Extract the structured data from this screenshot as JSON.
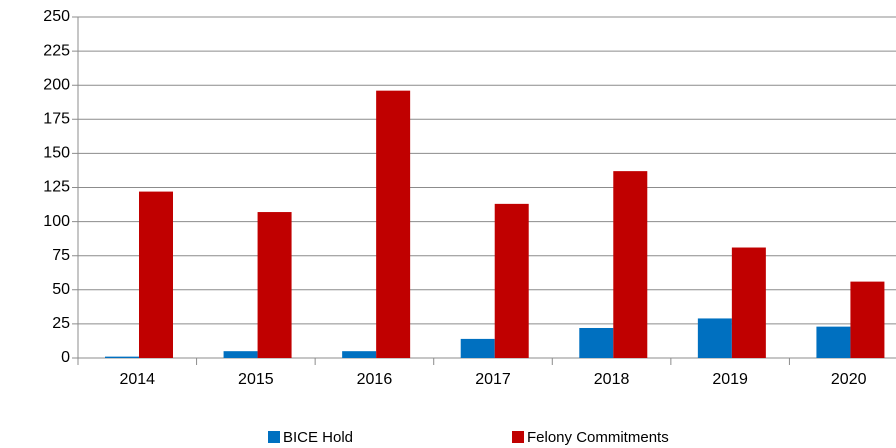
{
  "chart_data": {
    "type": "bar",
    "categories": [
      "2014",
      "2015",
      "2016",
      "2017",
      "2018",
      "2019",
      "2020"
    ],
    "series": [
      {
        "name": "BICE Hold",
        "color": "#0070c0",
        "values": [
          1,
          5,
          5,
          14,
          22,
          29,
          23
        ]
      },
      {
        "name": "Felony Commitments",
        "color": "#c00000",
        "values": [
          122,
          107,
          196,
          113,
          137,
          81,
          56
        ]
      }
    ],
    "ylim": [
      0,
      250
    ],
    "yticks": [
      0,
      25,
      50,
      75,
      100,
      125,
      150,
      175,
      200,
      225,
      250
    ],
    "grid": true,
    "legend": "bottom"
  }
}
